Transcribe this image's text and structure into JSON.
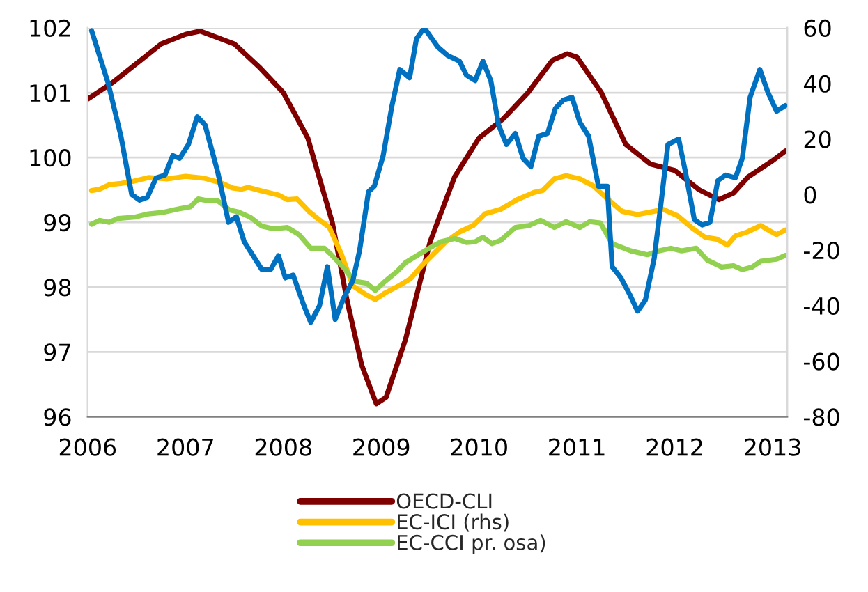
{
  "chart_data": {
    "type": "line",
    "xlim": [
      2006,
      2013.15
    ],
    "xticks": [
      2006,
      2007,
      2008,
      2009,
      2010,
      2011,
      2012,
      2013
    ],
    "ylim": [
      96,
      102
    ],
    "yticks": [
      96,
      97,
      98,
      99,
      100,
      101,
      102
    ],
    "y2lim": [
      -80,
      60
    ],
    "y2ticks": [
      -80,
      -60,
      -40,
      -20,
      0,
      20,
      40,
      60
    ],
    "grid": "y",
    "legend": "bottom",
    "line_style": "solid",
    "marker": "none",
    "series": [
      {
        "name": "OECD-CLI",
        "color": "#800000",
        "x": [
          2006.0,
          2006.25,
          2006.5,
          2006.75,
          2007.0,
          2007.15,
          2007.5,
          2007.75,
          2008.0,
          2008.25,
          2008.5,
          2008.65,
          2008.8,
          2008.95,
          2009.05,
          2009.25,
          2009.5,
          2009.75,
          2010.0,
          2010.25,
          2010.5,
          2010.75,
          2010.9,
          2011.0,
          2011.25,
          2011.5,
          2011.75,
          2012.0,
          2012.25,
          2012.45,
          2012.6,
          2012.75,
          2013.0,
          2013.13
        ],
        "values": [
          100.9,
          101.15,
          101.45,
          101.75,
          101.9,
          101.95,
          101.75,
          101.4,
          101.0,
          100.3,
          99.0,
          97.8,
          96.8,
          96.2,
          96.3,
          97.2,
          98.7,
          99.7,
          100.3,
          100.6,
          101.0,
          101.5,
          101.6,
          101.55,
          101.0,
          100.2,
          99.9,
          99.8,
          99.5,
          99.35,
          99.45,
          99.7,
          99.95,
          100.1
        ]
      },
      {
        "name": "EC-ICI (rhs)",
        "color": "#ffc000",
        "x": [
          2006.04,
          2006.12,
          2006.22,
          2006.34,
          2006.46,
          2006.62,
          2006.81,
          2007.0,
          2007.19,
          2007.36,
          2007.48,
          2007.57,
          2007.64,
          2007.76,
          2007.95,
          2008.04,
          2008.14,
          2008.26,
          2008.35,
          2008.47,
          2008.59,
          2008.71,
          2008.85,
          2008.94,
          2009.04,
          2009.18,
          2009.3,
          2009.42,
          2009.54,
          2009.66,
          2009.8,
          2009.94,
          2010.06,
          2010.22,
          2010.39,
          2010.56,
          2010.65,
          2010.77,
          2010.89,
          2011.03,
          2011.17,
          2011.32,
          2011.46,
          2011.62,
          2011.79,
          2011.88,
          2012.03,
          2012.17,
          2012.31,
          2012.43,
          2012.54,
          2012.62,
          2012.74,
          2012.88,
          2012.97,
          2013.04,
          2013.13
        ],
        "values": [
          99.49,
          99.51,
          99.58,
          99.6,
          99.63,
          99.69,
          99.67,
          99.71,
          99.68,
          99.61,
          99.53,
          99.51,
          99.54,
          99.49,
          99.42,
          99.35,
          99.36,
          99.17,
          99.06,
          98.92,
          98.52,
          98.02,
          97.88,
          97.81,
          97.91,
          98.02,
          98.13,
          98.34,
          98.52,
          98.7,
          98.85,
          98.95,
          99.13,
          99.2,
          99.35,
          99.46,
          99.49,
          99.67,
          99.72,
          99.67,
          99.56,
          99.35,
          99.17,
          99.12,
          99.17,
          99.2,
          99.1,
          98.92,
          98.77,
          98.74,
          98.65,
          98.79,
          98.85,
          98.95,
          98.87,
          98.81,
          98.88
        ]
      },
      {
        "name": "EC-CCI pr. osa)",
        "color": "#92d050",
        "x": [
          2006.04,
          2006.12,
          2006.22,
          2006.31,
          2006.48,
          2006.62,
          2006.76,
          2006.91,
          2007.05,
          2007.13,
          2007.24,
          2007.33,
          2007.45,
          2007.54,
          2007.66,
          2007.78,
          2007.9,
          2008.04,
          2008.16,
          2008.28,
          2008.42,
          2008.49,
          2008.61,
          2008.73,
          2008.85,
          2008.94,
          2009.04,
          2009.16,
          2009.25,
          2009.37,
          2009.49,
          2009.61,
          2009.75,
          2009.87,
          2009.96,
          2010.04,
          2010.13,
          2010.22,
          2010.37,
          2010.51,
          2010.63,
          2010.77,
          2010.89,
          2011.03,
          2011.13,
          2011.24,
          2011.36,
          2011.55,
          2011.72,
          2011.84,
          2011.96,
          2012.07,
          2012.22,
          2012.33,
          2012.48,
          2012.6,
          2012.69,
          2012.79,
          2012.88,
          2013.04,
          2013.13
        ],
        "values": [
          98.97,
          99.03,
          99.0,
          99.06,
          99.08,
          99.13,
          99.15,
          99.2,
          99.24,
          99.36,
          99.33,
          99.33,
          99.19,
          99.16,
          99.08,
          98.94,
          98.9,
          98.92,
          98.81,
          98.6,
          98.6,
          98.5,
          98.31,
          98.09,
          98.06,
          97.95,
          98.09,
          98.24,
          98.38,
          98.49,
          98.6,
          98.7,
          98.75,
          98.69,
          98.7,
          98.77,
          98.67,
          98.72,
          98.92,
          98.95,
          99.03,
          98.92,
          99.01,
          98.92,
          99.01,
          98.99,
          98.67,
          98.56,
          98.5,
          98.56,
          98.6,
          98.56,
          98.6,
          98.42,
          98.31,
          98.33,
          98.27,
          98.31,
          98.4,
          98.43,
          98.49
        ]
      },
      {
        "color": "#0070c0",
        "axis": "y2",
        "x": [
          2006.04,
          2006.21,
          2006.34,
          2006.45,
          2006.53,
          2006.61,
          2006.7,
          2006.79,
          2006.87,
          2006.94,
          2007.03,
          2007.12,
          2007.2,
          2007.33,
          2007.44,
          2007.52,
          2007.6,
          2007.69,
          2007.78,
          2007.87,
          2007.95,
          2008.02,
          2008.1,
          2008.21,
          2008.28,
          2008.37,
          2008.45,
          2008.53,
          2008.62,
          2008.71,
          2008.78,
          2008.87,
          2008.93,
          2009.02,
          2009.11,
          2009.19,
          2009.29,
          2009.36,
          2009.44,
          2009.58,
          2009.68,
          2009.8,
          2009.87,
          2009.96,
          2010.04,
          2010.12,
          2010.2,
          2010.28,
          2010.37,
          2010.45,
          2010.53,
          2010.61,
          2010.7,
          2010.78,
          2010.86,
          2010.95,
          2011.03,
          2011.12,
          2011.22,
          2011.31,
          2011.36,
          2011.45,
          2011.54,
          2011.62,
          2011.7,
          2011.79,
          2011.86,
          2011.93,
          2012.04,
          2012.11,
          2012.2,
          2012.28,
          2012.36,
          2012.44,
          2012.52,
          2012.62,
          2012.69,
          2012.77,
          2012.87,
          2012.95,
          2013.04,
          2013.13
        ],
        "values": [
          59,
          40,
          21,
          0,
          -2,
          -1,
          6,
          7,
          14,
          13,
          18,
          28,
          25,
          8,
          -10,
          -8,
          -17,
          -22,
          -27,
          -27,
          -22,
          -30,
          -29,
          -40,
          -46,
          -40,
          -26,
          -45,
          -37,
          -31,
          -20,
          1,
          3,
          14,
          32,
          45,
          42,
          56,
          60,
          53,
          50,
          48,
          43,
          41,
          48,
          41,
          25,
          18,
          22,
          13,
          10,
          21,
          22,
          31,
          34,
          35,
          26,
          21,
          3,
          3,
          -26,
          -30,
          -36,
          -42,
          -38,
          -23,
          -3,
          18,
          20,
          8,
          -9,
          -11,
          -10,
          5,
          7,
          6,
          13,
          35,
          45,
          37,
          30,
          32
        ]
      }
    ]
  }
}
